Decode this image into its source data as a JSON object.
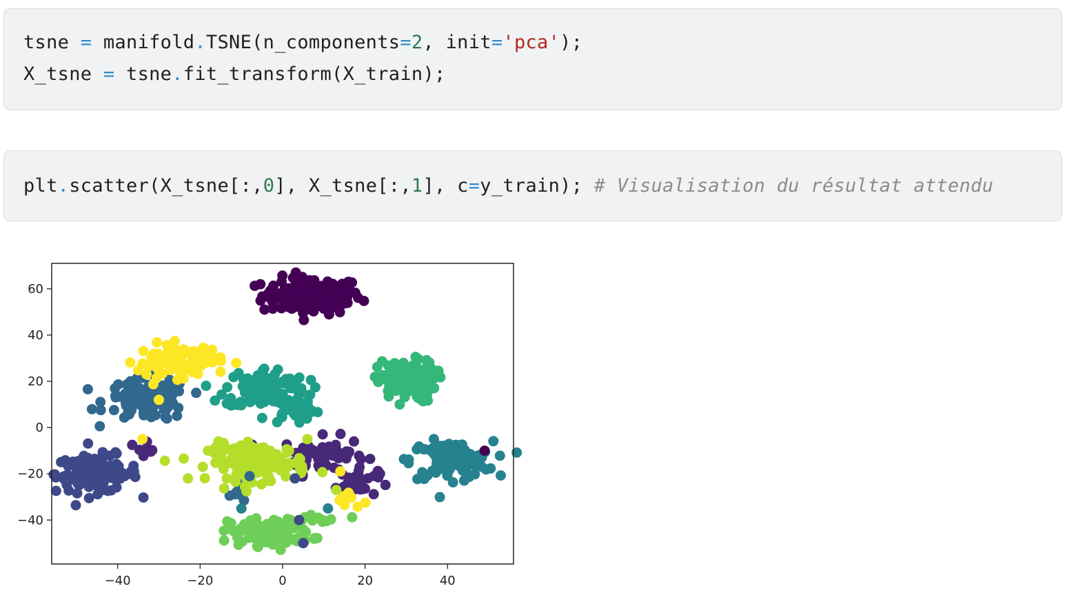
{
  "cells": [
    {
      "lines": [
        [
          {
            "t": "tsne ",
            "c": "plain"
          },
          {
            "t": "=",
            "c": "op"
          },
          {
            "t": " manifold",
            "c": "plain"
          },
          {
            "t": ".",
            "c": "op"
          },
          {
            "t": "TSNE(n_components",
            "c": "plain"
          },
          {
            "t": "=",
            "c": "op"
          },
          {
            "t": "2",
            "c": "num"
          },
          {
            "t": ", init",
            "c": "plain"
          },
          {
            "t": "=",
            "c": "op"
          },
          {
            "t": "'pca'",
            "c": "str"
          },
          {
            "t": ");",
            "c": "plain"
          }
        ],
        [
          {
            "t": "X_tsne ",
            "c": "plain"
          },
          {
            "t": "=",
            "c": "op"
          },
          {
            "t": " tsne",
            "c": "plain"
          },
          {
            "t": ".",
            "c": "op"
          },
          {
            "t": "fit_transform(X_train);",
            "c": "plain"
          }
        ]
      ]
    },
    {
      "lines": [
        [
          {
            "t": "plt",
            "c": "plain"
          },
          {
            "t": ".",
            "c": "op"
          },
          {
            "t": "scatter(X_tsne[:,",
            "c": "plain"
          },
          {
            "t": "0",
            "c": "num"
          },
          {
            "t": "], X_tsne[:,",
            "c": "plain"
          },
          {
            "t": "1",
            "c": "num"
          },
          {
            "t": "], c",
            "c": "plain"
          },
          {
            "t": "=",
            "c": "op"
          },
          {
            "t": "y_train); ",
            "c": "plain"
          },
          {
            "t": "# Visualisation du résultat attendu",
            "c": "cmt"
          }
        ]
      ]
    }
  ],
  "chart_data": {
    "type": "scatter",
    "title": "",
    "xlabel": "",
    "ylabel": "",
    "xlim": [
      -56,
      56
    ],
    "ylim": [
      -59,
      71
    ],
    "xticks": [
      -40,
      -20,
      0,
      20,
      40
    ],
    "xtick_labels": [
      "−40",
      "−20",
      "0",
      "20",
      "40"
    ],
    "yticks": [
      60,
      40,
      20,
      0,
      -20,
      -40
    ],
    "ytick_labels": [
      "60",
      "40",
      "20",
      "0",
      "−20",
      "−40"
    ],
    "grid": false,
    "colormap": "viridis",
    "colors": [
      "#440154",
      "#482878",
      "#3e4989",
      "#31688e",
      "#26828e",
      "#1f9e89",
      "#35b779",
      "#6ece58",
      "#b5de2b",
      "#fde725"
    ],
    "clusters": [
      {
        "label": 0,
        "center": [
          7,
          57
        ],
        "spread": [
          6,
          4
        ],
        "count": 140
      },
      {
        "label": 1,
        "center": [
          10,
          -12
        ],
        "spread": [
          5,
          4
        ],
        "count": 70
      },
      {
        "label": 1,
        "center": [
          18,
          -24
        ],
        "spread": [
          2.5,
          3
        ],
        "count": 30
      },
      {
        "label": 1,
        "center": [
          -33,
          -8
        ],
        "spread": [
          1.2,
          2
        ],
        "count": 8
      },
      {
        "label": 2,
        "center": [
          -45,
          -20
        ],
        "spread": [
          5,
          4
        ],
        "count": 130
      },
      {
        "label": 3,
        "center": [
          -33,
          12
        ],
        "spread": [
          5,
          4.5
        ],
        "count": 110
      },
      {
        "label": 3,
        "center": [
          -10,
          -28
        ],
        "spread": [
          1.5,
          2
        ],
        "count": 8
      },
      {
        "label": 4,
        "center": [
          41,
          -14
        ],
        "spread": [
          5,
          4
        ],
        "count": 110
      },
      {
        "label": 5,
        "center": [
          -4,
          17
        ],
        "spread": [
          5,
          4.5
        ],
        "count": 110
      },
      {
        "label": 5,
        "center": [
          3,
          8
        ],
        "spread": [
          3,
          3
        ],
        "count": 35
      },
      {
        "label": 6,
        "center": [
          30,
          20
        ],
        "spread": [
          3.5,
          4.5
        ],
        "count": 110
      },
      {
        "label": 7,
        "center": [
          -3,
          -45
        ],
        "spread": [
          5,
          3
        ],
        "count": 110
      },
      {
        "label": 7,
        "center": [
          9,
          -40
        ],
        "spread": [
          3,
          1
        ],
        "count": 10
      },
      {
        "label": 8,
        "center": [
          -6,
          -15
        ],
        "spread": [
          6,
          4
        ],
        "count": 130
      },
      {
        "label": 9,
        "center": [
          -25,
          29
        ],
        "spread": [
          5,
          3.5
        ],
        "count": 90
      },
      {
        "label": 9,
        "center": [
          16,
          -31
        ],
        "spread": [
          1.5,
          2
        ],
        "count": 10
      }
    ],
    "outliers": [
      {
        "x": 49,
        "y": -10,
        "label": 0
      },
      {
        "x": 4,
        "y": -40,
        "label": 2
      },
      {
        "x": 5,
        "y": -50,
        "label": 2
      },
      {
        "x": -10,
        "y": -35,
        "label": 4
      },
      {
        "x": 11,
        "y": -35,
        "label": 4
      },
      {
        "x": -8,
        "y": -21,
        "label": 3
      },
      {
        "x": 3,
        "y": -22,
        "label": 2
      },
      {
        "x": -30,
        "y": 12,
        "label": 9
      },
      {
        "x": -34,
        "y": -5,
        "label": 9
      },
      {
        "x": -33,
        "y": 23,
        "label": 9
      },
      {
        "x": 6,
        "y": -5,
        "label": 8
      },
      {
        "x": 14,
        "y": -19,
        "label": 9
      },
      {
        "x": 13,
        "y": -27,
        "label": 8
      }
    ]
  }
}
